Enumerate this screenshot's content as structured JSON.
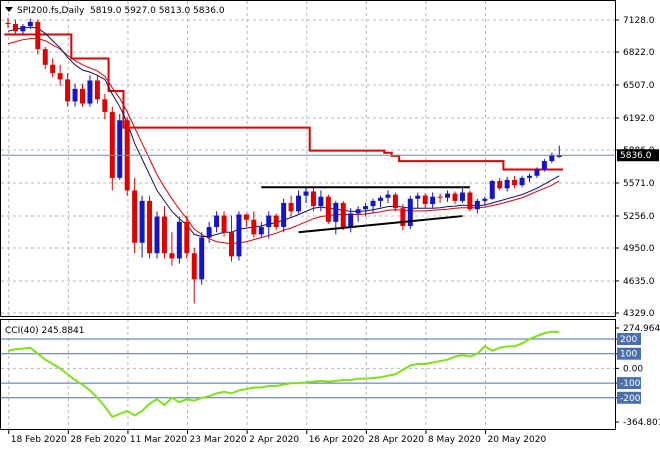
{
  "header": {
    "symbol": "SPI200.fs,Daily",
    "ohlc": "5819.0 5927.0 5813.0 5836.0",
    "current_price": "5836.0"
  },
  "colors": {
    "bull": "#1515c8",
    "bear": "#e00000",
    "ma_fast": "#10106a",
    "ma_slow": "#e00000",
    "cloud_line": "#e00000",
    "support_line": "#000000",
    "cci_line": "#7fe21a",
    "cci_level": "#4a6fb0",
    "grid": "#b8b8b8"
  },
  "price_axis": {
    "ticks": [
      "7128.0",
      "6822.0",
      "6507.0",
      "6192.0",
      "5886.0",
      "5571.0",
      "5256.0",
      "4950.0",
      "4635.0",
      "4329.0"
    ]
  },
  "cci_axis": {
    "ticks": [
      "274.9644",
      "200",
      "100",
      "0.00",
      "-100",
      "-200",
      "-364.801"
    ]
  },
  "cci_label": "CCI(40) 245.8841",
  "date_axis": {
    "ticks": [
      "18 Feb 2020",
      "28 Feb 2020",
      "11 Mar 2020",
      "23 Mar 2020",
      "2 Apr 2020",
      "16 Apr 2020",
      "28 Apr 2020",
      "8 May 2020",
      "20 May 2020"
    ]
  },
  "chart_data": [
    {
      "type": "candlestick",
      "title": "SPI200.fs,Daily",
      "ylim": [
        4329,
        7250
      ],
      "series": [
        {
          "name": "candles",
          "ohlc": [
            [
              7100,
              7150,
              7050,
              7090
            ],
            [
              7090,
              7130,
              6990,
              7020
            ],
            [
              7020,
              7090,
              6990,
              7070
            ],
            [
              7070,
              7140,
              7040,
              7110
            ],
            [
              7110,
              7130,
              6800,
              6850
            ],
            [
              6850,
              6870,
              6660,
              6700
            ],
            [
              6700,
              6760,
              6580,
              6620
            ],
            [
              6620,
              6700,
              6500,
              6560
            ],
            [
              6560,
              6620,
              6300,
              6350
            ],
            [
              6350,
              6520,
              6300,
              6470
            ],
            [
              6470,
              6520,
              6300,
              6330
            ],
            [
              6330,
              6600,
              6300,
              6550
            ],
            [
              6550,
              6600,
              6330,
              6370
            ],
            [
              6370,
              6420,
              6180,
              6250
            ],
            [
              6250,
              6300,
              5500,
              5620
            ],
            [
              5620,
              6230,
              5600,
              6170
            ],
            [
              6170,
              6200,
              5450,
              5500
            ],
            [
              5500,
              5620,
              4900,
              5000
            ],
            [
              5000,
              5450,
              4860,
              5400
            ],
            [
              5400,
              5450,
              4850,
              4900
            ],
            [
              4900,
              5300,
              4850,
              5250
            ],
            [
              5250,
              5350,
              4850,
              4900
            ],
            [
              4900,
              5100,
              4780,
              4850
            ],
            [
              4850,
              5250,
              4800,
              5200
            ],
            [
              5200,
              5260,
              4850,
              4900
            ],
            [
              4900,
              4950,
              4420,
              4650
            ],
            [
              4650,
              5100,
              4600,
              5050
            ],
            [
              5050,
              5200,
              5000,
              5150
            ],
            [
              5150,
              5300,
              5100,
              5260
            ],
            [
              5260,
              5300,
              5060,
              5100
            ],
            [
              5100,
              5260,
              4820,
              4870
            ],
            [
              4870,
              5300,
              4830,
              5270
            ],
            [
              5270,
              5280,
              5150,
              5220
            ],
            [
              5220,
              5300,
              5050,
              5080
            ],
            [
              5080,
              5200,
              5050,
              5150
            ],
            [
              5150,
              5300,
              5040,
              5260
            ],
            [
              5260,
              5280,
              5120,
              5150
            ],
            [
              5150,
              5420,
              5100,
              5380
            ],
            [
              5380,
              5450,
              5250,
              5300
            ],
            [
              5300,
              5500,
              5280,
              5450
            ],
            [
              5450,
              5520,
              5380,
              5490
            ],
            [
              5490,
              5540,
              5300,
              5350
            ],
            [
              5350,
              5500,
              5300,
              5440
            ],
            [
              5440,
              5460,
              5180,
              5200
            ],
            [
              5200,
              5400,
              5080,
              5380
            ],
            [
              5380,
              5400,
              5120,
              5150
            ],
            [
              5150,
              5330,
              5100,
              5280
            ],
            [
              5280,
              5350,
              5200,
              5320
            ],
            [
              5320,
              5380,
              5250,
              5350
            ],
            [
              5350,
              5420,
              5280,
              5400
            ],
            [
              5400,
              5450,
              5340,
              5430
            ],
            [
              5430,
              5500,
              5380,
              5460
            ],
            [
              5460,
              5480,
              5300,
              5330
            ],
            [
              5330,
              5370,
              5120,
              5160
            ],
            [
              5160,
              5450,
              5130,
              5420
            ],
            [
              5420,
              5480,
              5330,
              5450
            ],
            [
              5450,
              5470,
              5330,
              5370
            ],
            [
              5370,
              5480,
              5330,
              5440
            ],
            [
              5440,
              5470,
              5380,
              5430
            ],
            [
              5430,
              5500,
              5390,
              5470
            ],
            [
              5470,
              5490,
              5370,
              5400
            ],
            [
              5400,
              5520,
              5380,
              5480
            ],
            [
              5480,
              5500,
              5300,
              5320
            ],
            [
              5320,
              5420,
              5280,
              5400
            ],
            [
              5400,
              5440,
              5360,
              5420
            ],
            [
              5420,
              5600,
              5410,
              5590
            ],
            [
              5590,
              5620,
              5500,
              5520
            ],
            [
              5520,
              5630,
              5490,
              5600
            ],
            [
              5600,
              5640,
              5520,
              5550
            ],
            [
              5550,
              5640,
              5530,
              5620
            ],
            [
              5620,
              5660,
              5580,
              5640
            ],
            [
              5640,
              5720,
              5620,
              5700
            ],
            [
              5700,
              5800,
              5680,
              5780
            ],
            [
              5780,
              5860,
              5760,
              5840
            ],
            [
              5819,
              5927,
              5813,
              5836
            ]
          ]
        },
        {
          "name": "ma_fast",
          "values": [
            7020,
            7040,
            7050,
            7060,
            7050,
            7000,
            6930,
            6860,
            6770,
            6700,
            6650,
            6630,
            6600,
            6560,
            6420,
            6300,
            6150,
            5950,
            5800,
            5650,
            5500,
            5400,
            5300,
            5230,
            5170,
            5080,
            5060,
            5060,
            5080,
            5100,
            5100,
            5130,
            5140,
            5150,
            5160,
            5180,
            5190,
            5220,
            5240,
            5270,
            5300,
            5330,
            5340,
            5330,
            5320,
            5310,
            5300,
            5300,
            5305,
            5315,
            5330,
            5345,
            5350,
            5340,
            5330,
            5330,
            5330,
            5330,
            5335,
            5345,
            5350,
            5360,
            5355,
            5355,
            5360,
            5380,
            5400,
            5420,
            5440,
            5460,
            5490,
            5520,
            5560,
            5600,
            5640
          ]
        },
        {
          "name": "ma_slow",
          "values": [
            6900,
            6920,
            6940,
            6950,
            6950,
            6930,
            6890,
            6850,
            6790,
            6740,
            6700,
            6670,
            6640,
            6590,
            6480,
            6380,
            6250,
            6100,
            5950,
            5800,
            5650,
            5530,
            5420,
            5320,
            5230,
            5130,
            5080,
            5040,
            5010,
            5000,
            4990,
            5000,
            5010,
            5030,
            5050,
            5070,
            5090,
            5120,
            5140,
            5170,
            5200,
            5230,
            5250,
            5260,
            5270,
            5270,
            5270,
            5270,
            5275,
            5285,
            5295,
            5310,
            5315,
            5310,
            5305,
            5305,
            5305,
            5310,
            5315,
            5320,
            5330,
            5335,
            5335,
            5335,
            5340,
            5355,
            5370,
            5390,
            5410,
            5430,
            5460,
            5490,
            5520,
            5550,
            5590
          ]
        },
        {
          "name": "stop_line",
          "values": [
            6990,
            6990,
            6990,
            6990,
            6990,
            6990,
            6990,
            6990,
            6990,
            6760,
            6760,
            6760,
            6760,
            6760,
            6450,
            6450,
            6100,
            6100,
            6100,
            6100,
            6100,
            6100,
            6100,
            6100,
            6100,
            6100,
            6100,
            6100,
            6100,
            6100,
            6100,
            6100,
            6100,
            6100,
            6100,
            6100,
            6100,
            6100,
            6100,
            6100,
            6100,
            5880,
            5880,
            5880,
            5880,
            5880,
            5880,
            5880,
            5880,
            5880,
            5880,
            5860,
            5830,
            5780,
            5780,
            5780,
            5780,
            5780,
            5780,
            5780,
            5780,
            5780,
            5780,
            5780,
            5780,
            5780,
            5780,
            5700,
            5700,
            5700,
            5700,
            5700,
            5700,
            5700,
            5700
          ]
        },
        {
          "name": "resistance",
          "points": [
            [
              34,
              5530
            ],
            [
              62,
              5530
            ]
          ]
        },
        {
          "name": "support",
          "points": [
            [
              39,
              5100
            ],
            [
              61,
              5255
            ]
          ]
        }
      ]
    },
    {
      "type": "line",
      "title": "CCI(40) 245.8841",
      "ylim": [
        -364.801,
        274.9644
      ],
      "levels": [
        200,
        100,
        -100,
        -200
      ],
      "series": [
        {
          "name": "CCI(40)",
          "values": [
            120,
            130,
            135,
            140,
            100,
            60,
            30,
            0,
            -40,
            -80,
            -110,
            -150,
            -200,
            -260,
            -330,
            -310,
            -290,
            -320,
            -290,
            -240,
            -210,
            -250,
            -200,
            -230,
            -210,
            -220,
            -200,
            -190,
            -170,
            -160,
            -170,
            -150,
            -140,
            -130,
            -130,
            -120,
            -120,
            -110,
            -100,
            -100,
            -95,
            -90,
            -85,
            -90,
            -85,
            -80,
            -80,
            -70,
            -70,
            -65,
            -60,
            -50,
            -40,
            -10,
            20,
            30,
            30,
            40,
            50,
            60,
            80,
            90,
            80,
            100,
            150,
            120,
            140,
            150,
            150,
            170,
            200,
            220,
            240,
            250,
            245.8841
          ]
        }
      ]
    }
  ]
}
